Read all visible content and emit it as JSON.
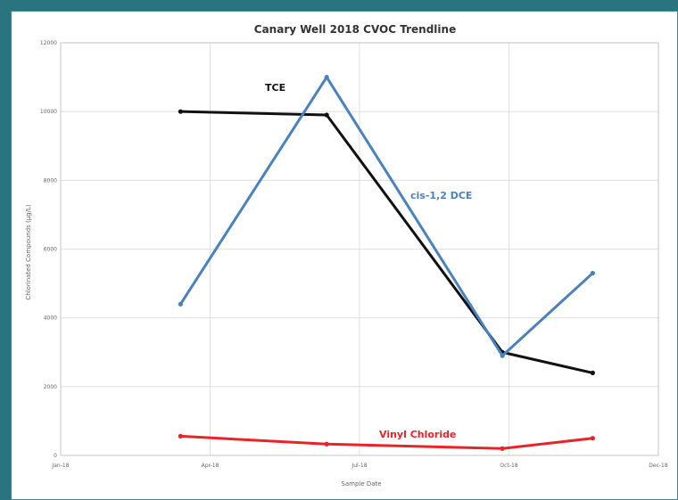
{
  "chart_data": {
    "type": "line",
    "title": "Canary Well 2018 CVOC Trendline",
    "xlabel": "Sample Date",
    "ylabel": "Chlorinated Compounds (µg/L)",
    "ylim": [
      0,
      12000
    ],
    "yticks": [
      "0",
      "2000",
      "4000",
      "6000",
      "8000",
      "10000",
      "12000"
    ],
    "xtick_labels": [
      "Jan-18",
      "Apr-18",
      "Jul-18",
      "Oct-18",
      "Dec-18"
    ],
    "grid": true,
    "series": [
      {
        "name": "TCE",
        "color": "#111111",
        "x": [
          "2018-03-15",
          "2018-06-12",
          "2018-09-27",
          "2018-11-21"
        ],
        "y": [
          10000,
          9900,
          3000,
          2400
        ]
      },
      {
        "name": "cis-1,2 DCE",
        "color": "#4a82c0",
        "x": [
          "2018-03-15",
          "2018-06-12",
          "2018-09-27",
          "2018-11-21"
        ],
        "y": [
          4400,
          11000,
          2900,
          5300
        ]
      },
      {
        "name": "Vinyl Chloride",
        "color": "#e8242a",
        "x": [
          "2018-03-15",
          "2018-06-12",
          "2018-09-27",
          "2018-11-21"
        ],
        "y": [
          560,
          330,
          200,
          500
        ]
      }
    ]
  }
}
